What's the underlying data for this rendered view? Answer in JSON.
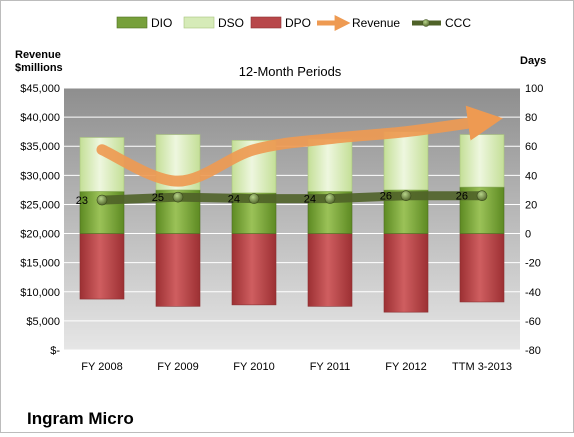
{
  "chart_data": {
    "type": "bar",
    "title": "12-Month Periods",
    "footer": "Ingram Micro",
    "left_axis": {
      "label_line1": "Revenue",
      "label_line2": "$millions",
      "min": 0,
      "max": 45000,
      "step": 5000,
      "tick_labels": [
        "$-",
        "$5,000",
        "$10,000",
        "$15,000",
        "$20,000",
        "$25,000",
        "$30,000",
        "$35,000",
        "$40,000",
        "$45,000"
      ]
    },
    "right_axis": {
      "label": "Days",
      "min": -80,
      "max": 100,
      "step": 20,
      "tick_labels": [
        "-80",
        "-60",
        "-40",
        "-20",
        "0",
        "20",
        "40",
        "60",
        "80",
        "100"
      ]
    },
    "categories": [
      "FY 2008",
      "FY 2009",
      "FY 2010",
      "FY 2011",
      "FY 2012",
      "TTM 3-2013"
    ],
    "series": [
      {
        "name": "DIO",
        "kind": "bar",
        "axis": "right",
        "values": [
          29,
          30,
          28,
          29,
          30,
          32
        ],
        "color": "#77a03b"
      },
      {
        "name": "DSO",
        "kind": "bar",
        "axis": "right",
        "values": [
          37,
          38,
          36,
          36,
          40,
          36
        ],
        "color": "#d6ebb8"
      },
      {
        "name": "DPO",
        "kind": "bar",
        "axis": "right",
        "values": [
          -45,
          -50,
          -49,
          -50,
          -54,
          -47
        ],
        "color": "#b8474a"
      },
      {
        "name": "Revenue",
        "kind": "line",
        "axis": "left",
        "values": [
          34400,
          29000,
          34400,
          36300,
          37500,
          39300
        ],
        "color": "#ee9a52"
      },
      {
        "name": "CCC",
        "kind": "line",
        "axis": "right",
        "values": [
          23,
          25,
          24,
          24,
          26,
          26
        ],
        "color": "#4f6228"
      }
    ],
    "ccc_labels": [
      "23",
      "25",
      "24",
      "24",
      "26",
      "26"
    ],
    "colors": {
      "plot_background": "#bfbfbf",
      "grid": "#ffffff",
      "revenue_line": "#ee9a52",
      "ccc_line": "#4f6228"
    },
    "legend_position": "top"
  }
}
